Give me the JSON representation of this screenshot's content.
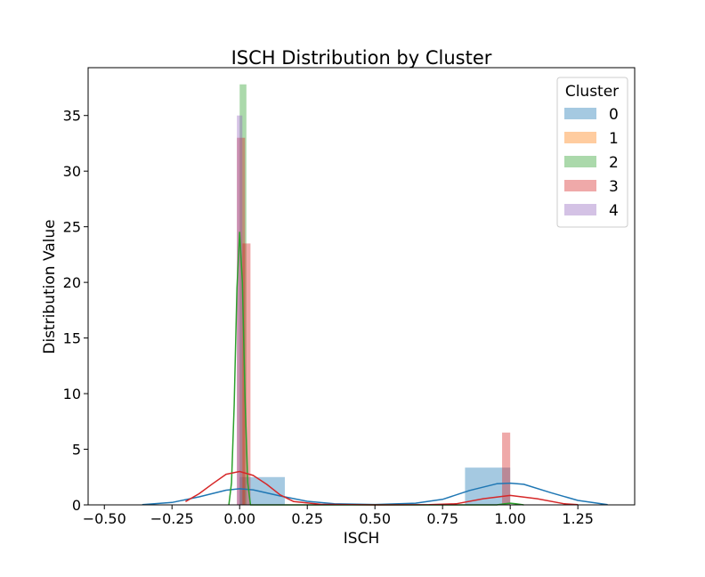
{
  "chart_data": {
    "type": "histogram",
    "title": "ISCH Distribution by Cluster",
    "xlabel": "ISCH",
    "ylabel": "Distribution Value",
    "xlim": [
      -0.56,
      1.46
    ],
    "ylim": [
      0,
      39.3
    ],
    "x_ticks": [
      -0.5,
      -0.25,
      0.0,
      0.25,
      0.5,
      0.75,
      1.0,
      1.25
    ],
    "x_tick_labels": [
      "−0.50",
      "−0.25",
      "0.00",
      "0.25",
      "0.50",
      "0.75",
      "1.00",
      "1.25"
    ],
    "y_ticks": [
      0,
      5,
      10,
      15,
      20,
      25,
      30,
      35
    ],
    "y_tick_labels": [
      "0",
      "5",
      "10",
      "15",
      "20",
      "25",
      "30",
      "35"
    ],
    "grid": false,
    "legend": {
      "title": "Cluster",
      "placement": "top-right"
    },
    "colors": {
      "c0": "#1f77b4",
      "c1": "#ff7f0e",
      "c2": "#2ca02c",
      "c3": "#d62728",
      "c4": "#9467bd"
    },
    "series": [
      {
        "name": "0",
        "color_key": "c0",
        "bars": [
          {
            "x0": 0.0,
            "x1": 0.167,
            "value": 2.5
          },
          {
            "x0": 0.833,
            "x1": 1.0,
            "value": 3.35
          }
        ],
        "kde": {
          "x": [
            -0.36,
            -0.25,
            -0.15,
            -0.05,
            0.0,
            0.05,
            0.15,
            0.25,
            0.35,
            0.5,
            0.65,
            0.75,
            0.85,
            0.95,
            1.0,
            1.05,
            1.15,
            1.25,
            1.36
          ],
          "y": [
            0.02,
            0.22,
            0.72,
            1.32,
            1.45,
            1.35,
            0.8,
            0.32,
            0.1,
            0.03,
            0.15,
            0.5,
            1.3,
            1.9,
            1.95,
            1.85,
            1.1,
            0.4,
            0.02
          ]
        }
      },
      {
        "name": "1",
        "color_key": "c1",
        "bars": [],
        "kde": {
          "x": [],
          "y": []
        }
      },
      {
        "name": "2",
        "color_key": "c2",
        "bars": [
          {
            "x0": 0.0,
            "x1": 0.025,
            "value": 37.8
          }
        ],
        "kde": {
          "x": [
            -0.04,
            -0.03,
            -0.02,
            -0.01,
            0.0,
            0.01,
            0.02,
            0.03,
            0.04,
            0.06,
            0.95,
            0.98,
            1.0,
            1.02,
            1.05
          ],
          "y": [
            0.0,
            2.0,
            9.0,
            19.5,
            24.5,
            20.0,
            9.5,
            2.0,
            0.0,
            0.0,
            0.0,
            0.1,
            0.15,
            0.1,
            0.0
          ]
        }
      },
      {
        "name": "3",
        "color_key": "c3",
        "bars": [
          {
            "x0": -0.01,
            "x1": 0.02,
            "value": 33.0
          },
          {
            "x0": 0.01,
            "x1": 0.04,
            "value": 23.5
          },
          {
            "x0": 0.97,
            "x1": 1.0,
            "value": 6.5
          }
        ],
        "kde": {
          "x": [
            -0.2,
            -0.15,
            -0.1,
            -0.05,
            0.0,
            0.05,
            0.1,
            0.15,
            0.2,
            0.3,
            0.5,
            0.7,
            0.8,
            0.9,
            1.0,
            1.1,
            1.2,
            1.25
          ],
          "y": [
            0.3,
            1.0,
            1.9,
            2.75,
            3.0,
            2.65,
            1.85,
            0.9,
            0.3,
            0.05,
            0.0,
            0.02,
            0.1,
            0.55,
            0.85,
            0.55,
            0.1,
            0.02
          ]
        }
      },
      {
        "name": "4",
        "color_key": "c4",
        "bars": [
          {
            "x0": -0.01,
            "x1": 0.01,
            "value": 35.0
          }
        ],
        "kde": {
          "x": [],
          "y": []
        }
      }
    ]
  }
}
